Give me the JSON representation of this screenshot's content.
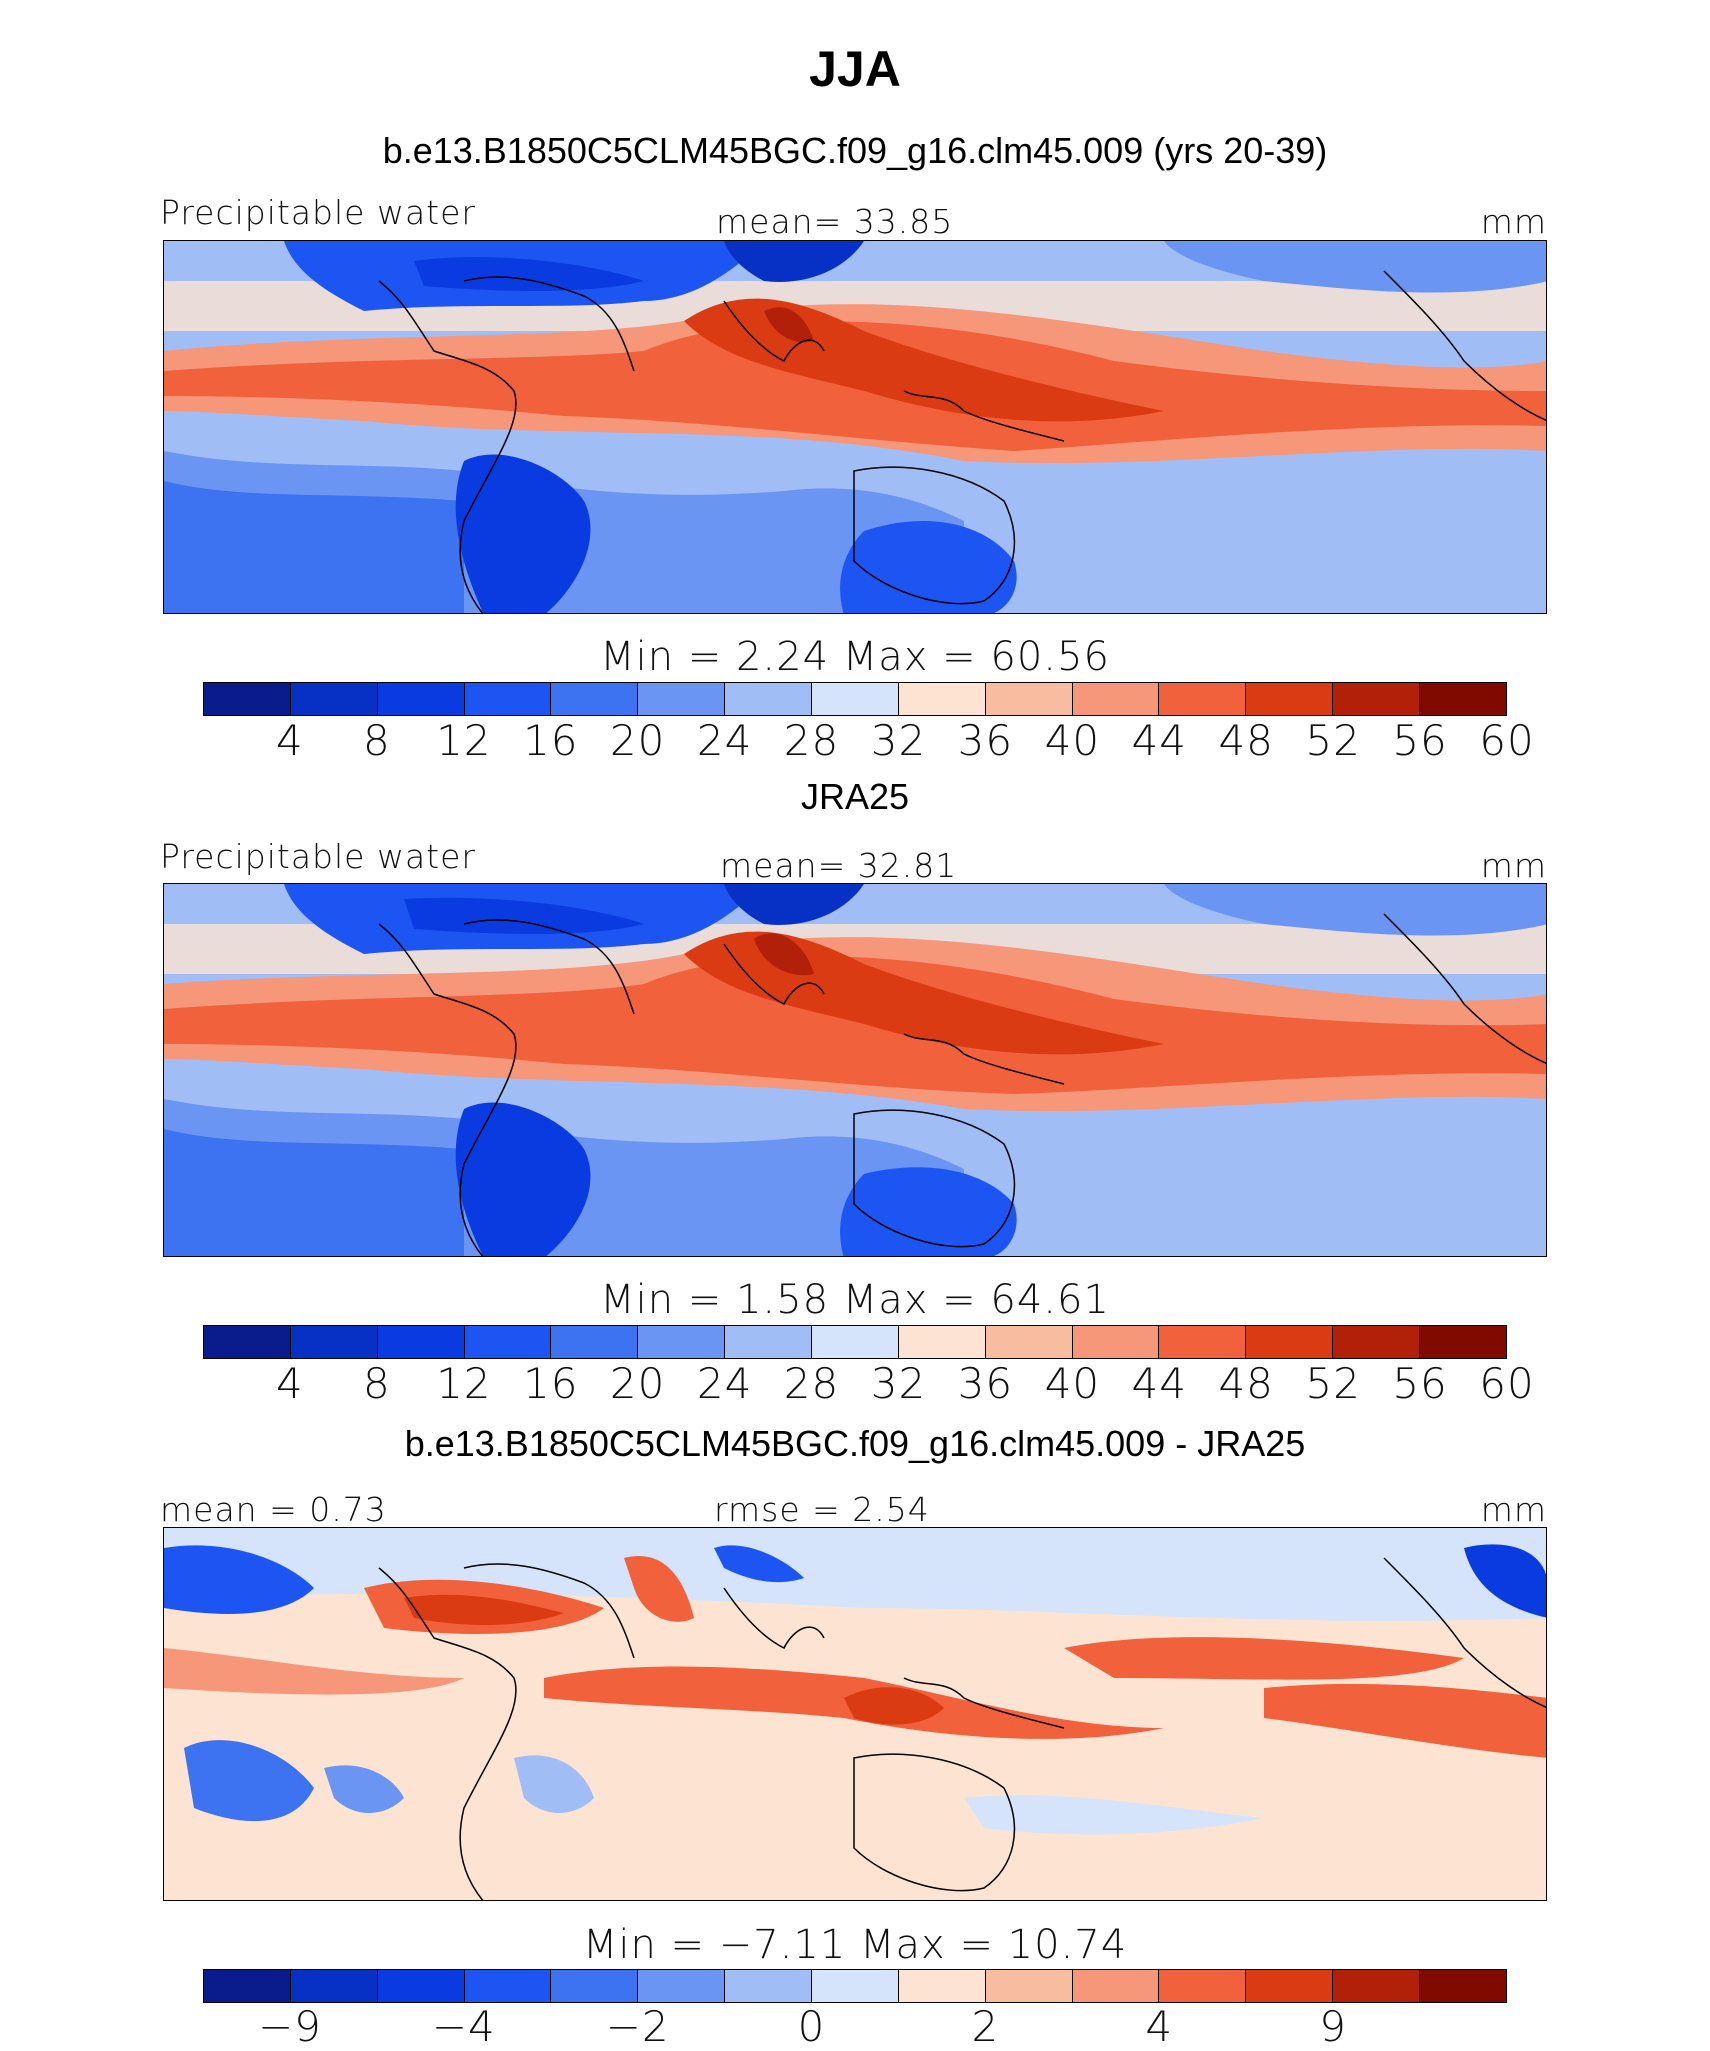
{
  "title": "JJA",
  "colors": {
    "precip_scale": [
      "#0a1c8c",
      "#0730c4",
      "#0a3be0",
      "#1d55f2",
      "#3d72f0",
      "#6b95f2",
      "#a0bdf6",
      "#d5e4fb",
      "#fde4d2",
      "#f8bda0",
      "#f59778",
      "#f0613c",
      "#db3b12",
      "#b3200a",
      "#800a00"
    ],
    "diff_scale": [
      "#0a1c8c",
      "#0730c4",
      "#0a3be0",
      "#1d55f2",
      "#3d72f0",
      "#6b95f2",
      "#a0bdf6",
      "#d5e4fb",
      "#fde4d2",
      "#f8bda0",
      "#f59778",
      "#f0613c",
      "#db3b12",
      "#b3200a",
      "#800a00"
    ],
    "land_outline": "#000000"
  },
  "panels": [
    {
      "title": "b.e13.B1850C5CLM45BGC.f09_g16.clm45.009 (yrs 20-39)",
      "left_label": "Precipitable water",
      "mid_label": "mean=   33.85",
      "right_label": "mm",
      "minmax": "Min =    2.24  Max =   60.56",
      "colorbar_ticks": [
        "4",
        "8",
        "12",
        "16",
        "20",
        "24",
        "28",
        "32",
        "36",
        "40",
        "44",
        "48",
        "52",
        "56",
        "60"
      ]
    },
    {
      "title": "JRA25",
      "left_label": "Precipitable water",
      "mid_label": "mean=   32.81",
      "right_label": "mm",
      "minmax": "Min =    1.58  Max =   64.61",
      "colorbar_ticks": [
        "4",
        "8",
        "12",
        "16",
        "20",
        "24",
        "28",
        "32",
        "36",
        "40",
        "44",
        "48",
        "52",
        "56",
        "60"
      ]
    },
    {
      "title": "b.e13.B1850C5CLM45BGC.f09_g16.clm45.009 - JRA25",
      "left_label": "mean =   0.73",
      "mid_label": "rmse =   2.54",
      "right_label": "mm",
      "minmax": "Min =   −7.11  Max =   10.74",
      "colorbar_ticks": [
        "−9",
        "−4",
        "−2",
        "0",
        "2",
        "4",
        "9"
      ]
    }
  ],
  "chart_data": [
    {
      "type": "heatmap",
      "title": "b.e13.B1850C5CLM45BGC.f09_g16.clm45.009 (yrs 20-39)",
      "variable": "Precipitable water",
      "units": "mm",
      "mean": 33.85,
      "min": 2.24,
      "max": 60.56,
      "levels": [
        4,
        8,
        12,
        16,
        20,
        24,
        28,
        32,
        36,
        40,
        44,
        48,
        52,
        56,
        60
      ],
      "lon_range": [
        0,
        360
      ],
      "lat_range": [
        -40,
        40
      ]
    },
    {
      "type": "heatmap",
      "title": "JRA25",
      "variable": "Precipitable water",
      "units": "mm",
      "mean": 32.81,
      "min": 1.58,
      "max": 64.61,
      "levels": [
        4,
        8,
        12,
        16,
        20,
        24,
        28,
        32,
        36,
        40,
        44,
        48,
        52,
        56,
        60
      ],
      "lon_range": [
        0,
        360
      ],
      "lat_range": [
        -40,
        40
      ]
    },
    {
      "type": "heatmap",
      "title": "b.e13.B1850C5CLM45BGC.f09_g16.clm45.009 - JRA25",
      "units": "mm",
      "mean": 0.73,
      "rmse": 2.54,
      "min": -7.11,
      "max": 10.74,
      "levels": [
        -9,
        -4,
        -2,
        0,
        2,
        4,
        9
      ],
      "lon_range": [
        0,
        360
      ],
      "lat_range": [
        -40,
        40
      ]
    }
  ]
}
